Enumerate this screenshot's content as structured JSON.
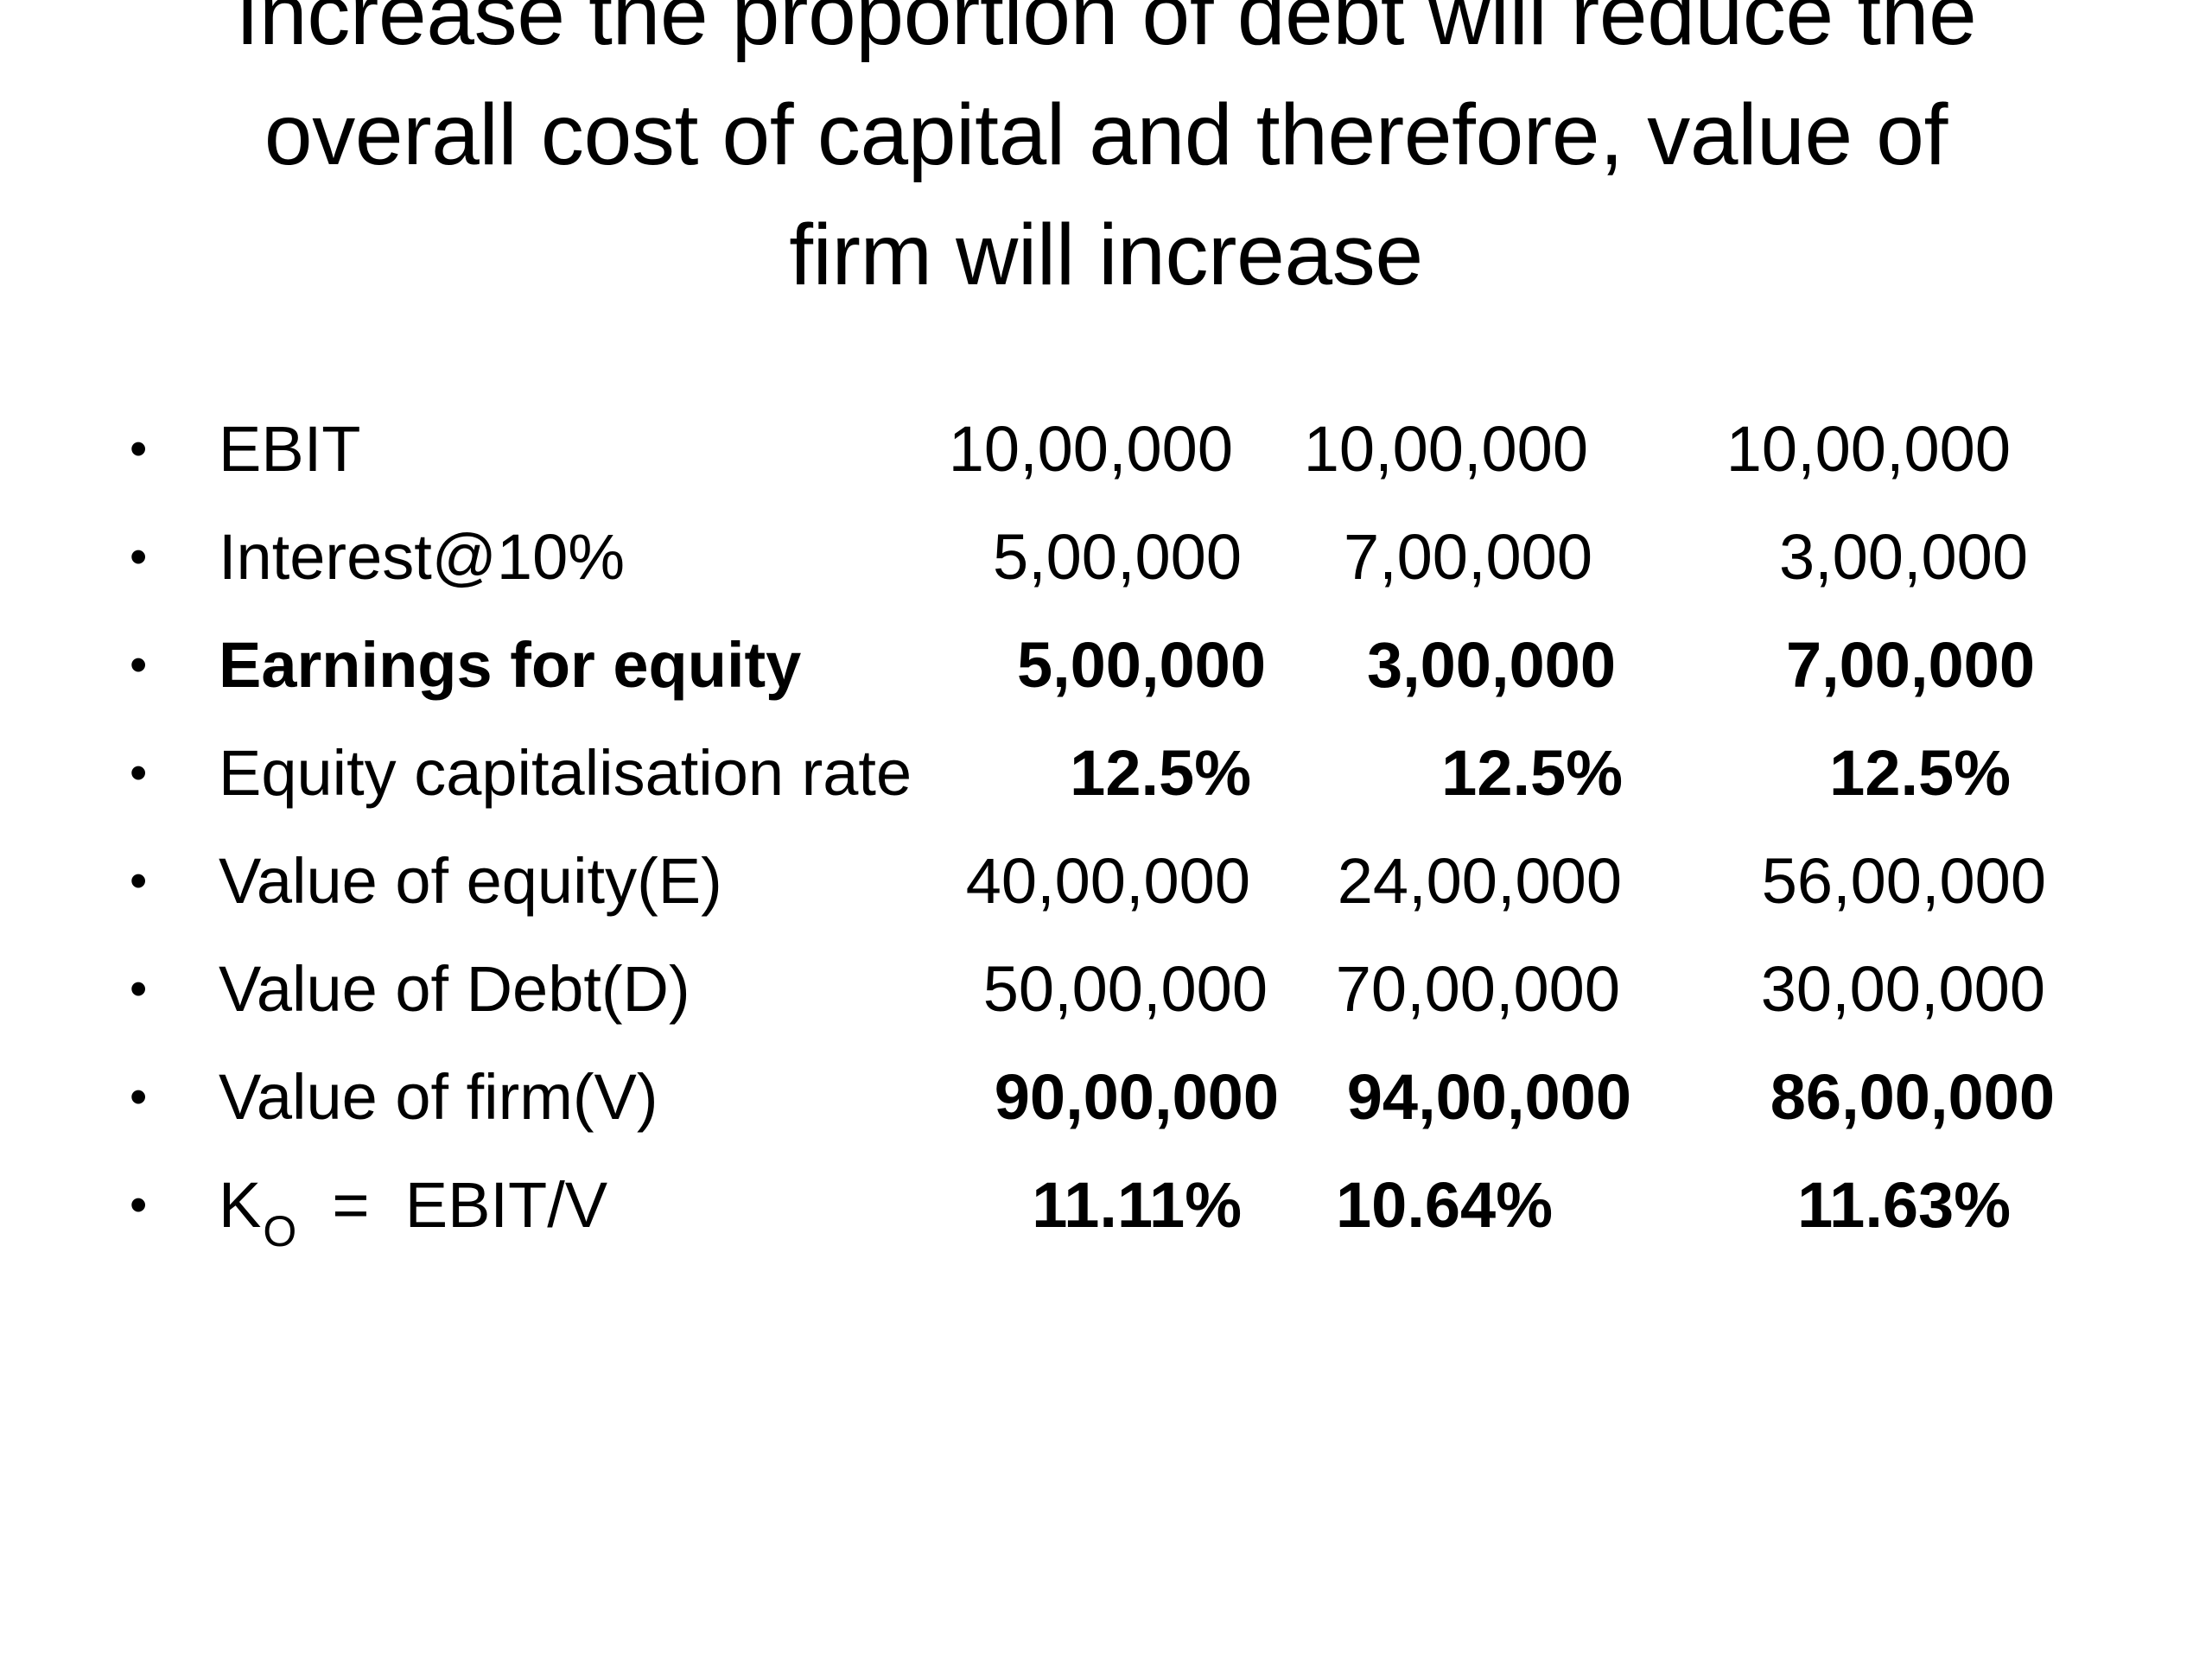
{
  "slide": {
    "title_lines": [
      "Increase the proportion of debt will reduce the",
      "overall cost of capital and therefore, value of",
      "firm will increase"
    ],
    "bullet_glyph": "•",
    "rows": [
      {
        "label": "EBIT",
        "values": [
          "10,00,000",
          "10,00,000",
          "10,00,000"
        ]
      },
      {
        "label": "Interest@10%",
        "values": [
          "5,00,000",
          "7,00,000",
          "3,00,000"
        ]
      },
      {
        "label": "Earnings for equity",
        "values": [
          "5,00,000",
          "3,00,000",
          "7,00,000"
        ]
      },
      {
        "label": "Equity capitalisation rate",
        "values": [
          "12.5%",
          "12.5%",
          "12.5%"
        ]
      },
      {
        "label": "Value of equity(E)",
        "values": [
          "40,00,000",
          "24,00,000",
          "56,00,000"
        ]
      },
      {
        "label": "Value of Debt(D)",
        "values": [
          "50,00,000",
          "70,00,000",
          "30,00,000"
        ]
      },
      {
        "label": "Value of firm(V)",
        "values": [
          "90,00,000",
          "94,00,000",
          "86,00,000"
        ]
      },
      {
        "label_main": "K",
        "label_sub": "O",
        "label_rest": "  =  EBIT/V",
        "values": [
          "11.11%",
          "10.64%",
          "11.63%"
        ]
      }
    ]
  }
}
